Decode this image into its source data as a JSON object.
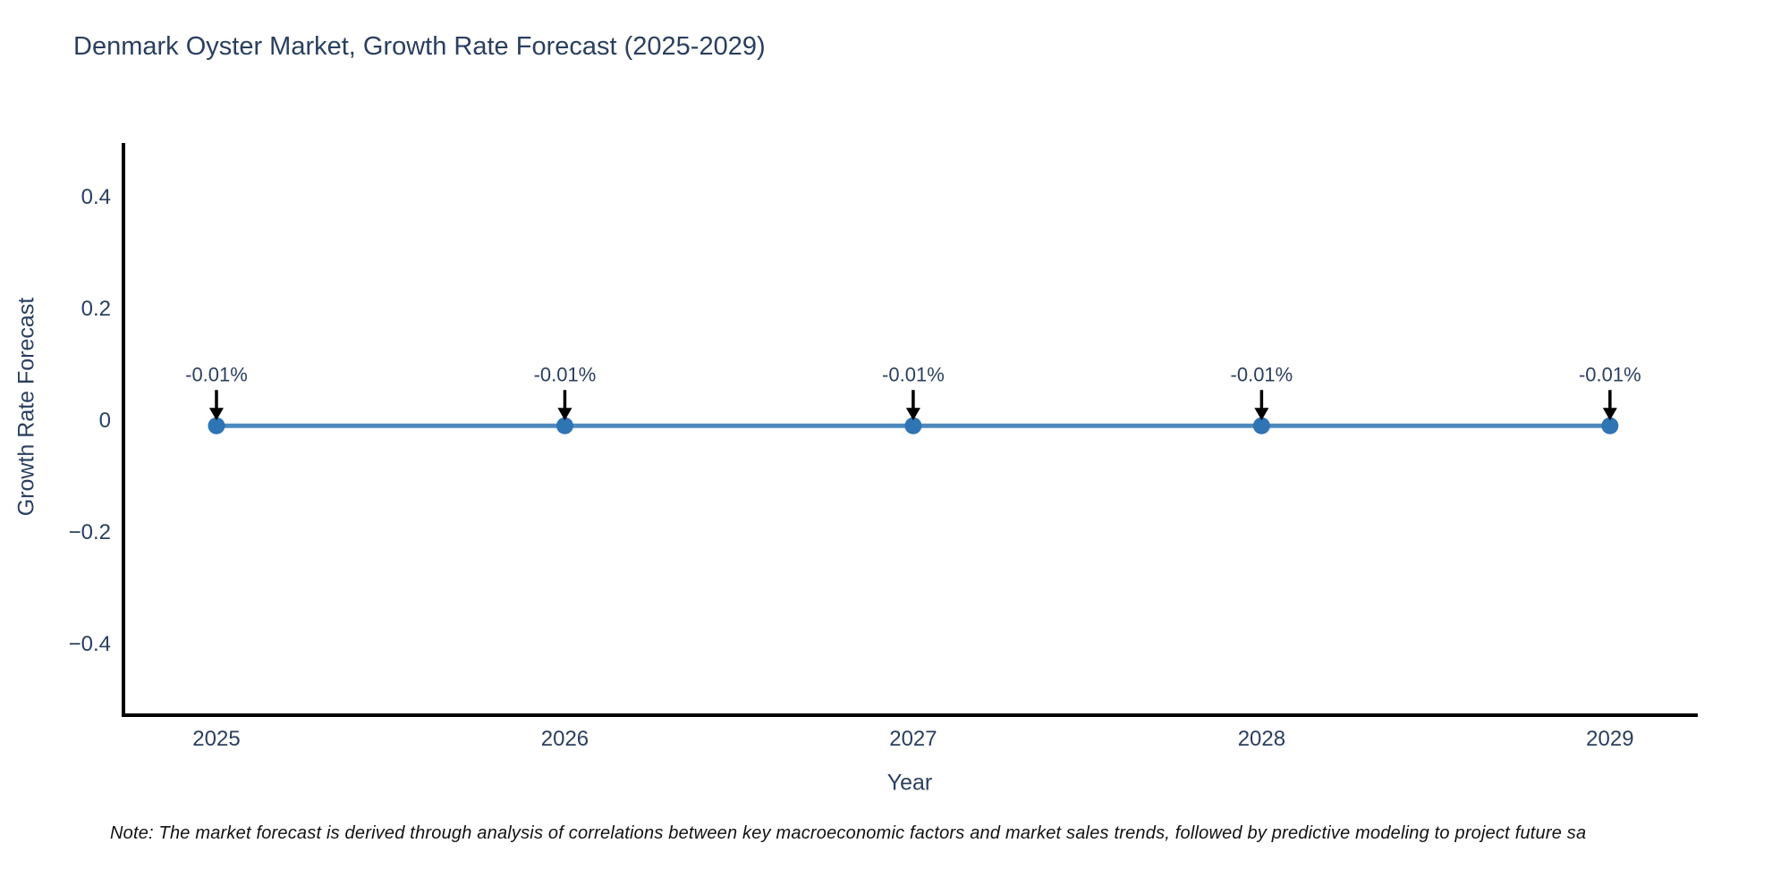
{
  "page": {
    "background": "#ffffff"
  },
  "header": {
    "title": "Denmark Oyster Market, Growth Rate Forecast (2025-2029)"
  },
  "footnote": {
    "text": "Note: The market forecast is derived through analysis of correlations between key macroeconomic factors and market sales trends, followed by predictive modeling to project future sa"
  },
  "chart_data": {
    "type": "line",
    "title": "Denmark Oyster Market, Growth Rate Forecast (2025-2029)",
    "xlabel": "Year",
    "ylabel": "Growth Rate Forecast",
    "x": [
      2025,
      2026,
      2027,
      2028,
      2029
    ],
    "series": [
      {
        "name": "Growth Rate Forecast",
        "values": [
          -0.01,
          -0.01,
          -0.01,
          -0.01,
          -0.01
        ]
      }
    ],
    "point_annotations": [
      "-0.01%",
      "-0.01%",
      "-0.01%",
      "-0.01%",
      "-0.01%"
    ],
    "xticks": {
      "values": [
        2025,
        2026,
        2027,
        2028,
        2029
      ],
      "labels": [
        "2025",
        "2026",
        "2027",
        "2028",
        "2029"
      ]
    },
    "yticks": {
      "values": [
        0.4,
        0.2,
        0,
        -0.2,
        -0.4
      ],
      "labels": [
        "0.4",
        "0.2",
        "0",
        "−0.2",
        "−0.4"
      ]
    },
    "xlim": [
      2024.733,
      2029.252
    ],
    "ylim": [
      -0.528,
      0.496
    ],
    "grid": false,
    "legend": false,
    "colors": {
      "line": "#4d89bd",
      "marker": "#2f74b3",
      "axis": "#000000",
      "tick_text": "#2a3f5f",
      "annotation_text": "#2a3f5f",
      "arrow": "#000000"
    }
  }
}
